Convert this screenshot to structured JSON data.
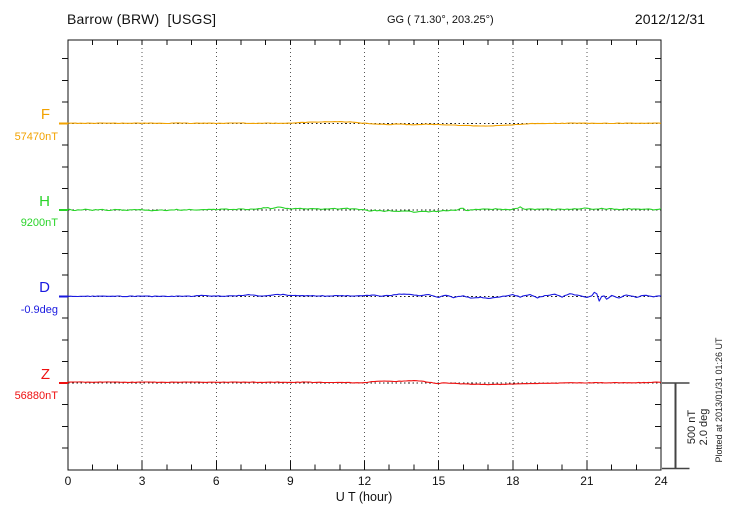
{
  "header": {
    "title": "Barrow (BRW)  [USGS]",
    "coords": "GG ( 71.30°, 203.25°)",
    "date": "2012/12/31"
  },
  "footer": {
    "plotted_at": "Plotted at 2013/01/31 01:26 UT"
  },
  "chart_data": {
    "type": "line",
    "title": "Barrow (BRW) [USGS] magnetogram 2012/12/31",
    "x": {
      "label": "U T (hour)",
      "min": 0,
      "max": 24,
      "major_tick_step": 3,
      "minor_tick_step": 1,
      "tick_labels": [
        "0",
        "3",
        "6",
        "9",
        "12",
        "15",
        "18",
        "21",
        "24"
      ],
      "gridlines": "dotted vertical every 3 hours"
    },
    "y": {
      "minor_tick_nT": 125,
      "minor_tick_deg": 0.5
    },
    "scale_bar": {
      "nT_label": "500 nT",
      "deg_label": "2.0 deg",
      "span_nT": 500,
      "span_deg": 2.0
    },
    "channels": [
      {
        "id": "F",
        "label": "F",
        "value_label": "57470nT",
        "base_value": 57470,
        "unit": "nT",
        "color": "#f2a200",
        "noise": 2.5,
        "points": [
          [
            0,
            1
          ],
          [
            0.5,
            2
          ],
          [
            1,
            1
          ],
          [
            1.5,
            3
          ],
          [
            2,
            1
          ],
          [
            2.5,
            2
          ],
          [
            3,
            1
          ],
          [
            3.5,
            2
          ],
          [
            4,
            1
          ],
          [
            4.5,
            3
          ],
          [
            5,
            1
          ],
          [
            5.5,
            2
          ],
          [
            6,
            1
          ],
          [
            6.5,
            2
          ],
          [
            7,
            3
          ],
          [
            7.5,
            1
          ],
          [
            8,
            2
          ],
          [
            8.5,
            1
          ],
          [
            9,
            3
          ],
          [
            9.5,
            6
          ],
          [
            10,
            8
          ],
          [
            10.5,
            10
          ],
          [
            11,
            10
          ],
          [
            11.5,
            8
          ],
          [
            11.8,
            4
          ],
          [
            12,
            1
          ],
          [
            12.5,
            -4
          ],
          [
            13,
            -6
          ],
          [
            13.3,
            -3
          ],
          [
            13.7,
            -6
          ],
          [
            14,
            -7
          ],
          [
            14.5,
            -4
          ],
          [
            15,
            -6
          ],
          [
            15.5,
            -9
          ],
          [
            16,
            -12
          ],
          [
            16.5,
            -13
          ],
          [
            17,
            -14
          ],
          [
            17.5,
            -12
          ],
          [
            18,
            -8
          ],
          [
            18.3,
            -4
          ],
          [
            18.7,
            -1
          ],
          [
            19,
            0
          ],
          [
            19.5,
            1
          ],
          [
            20,
            1
          ],
          [
            20.5,
            2
          ],
          [
            21,
            1
          ],
          [
            21.5,
            2
          ],
          [
            22,
            1
          ],
          [
            22.5,
            2
          ],
          [
            23,
            1
          ],
          [
            23.5,
            2
          ],
          [
            24,
            2
          ]
        ]
      },
      {
        "id": "H",
        "label": "H",
        "value_label": "9200nT",
        "base_value": 9200,
        "unit": "nT",
        "color": "#2ad42a",
        "noise": 5,
        "points": [
          [
            0,
            3
          ],
          [
            0.3,
            -2
          ],
          [
            0.7,
            3
          ],
          [
            1,
            -2
          ],
          [
            1.3,
            3
          ],
          [
            1.7,
            -1
          ],
          [
            2,
            2
          ],
          [
            2.3,
            -2
          ],
          [
            2.7,
            1
          ],
          [
            3,
            3
          ],
          [
            3.3,
            -3
          ],
          [
            3.7,
            0
          ],
          [
            4,
            -2
          ],
          [
            4.3,
            2
          ],
          [
            4.7,
            0
          ],
          [
            5,
            3
          ],
          [
            5.3,
            0
          ],
          [
            5.7,
            4
          ],
          [
            6,
            2
          ],
          [
            6.3,
            5
          ],
          [
            6.7,
            3
          ],
          [
            7,
            6
          ],
          [
            7.3,
            4
          ],
          [
            7.7,
            7
          ],
          [
            8,
            14
          ],
          [
            8.2,
            9
          ],
          [
            8.5,
            17
          ],
          [
            8.8,
            10
          ],
          [
            9,
            8
          ],
          [
            9.3,
            11
          ],
          [
            9.7,
            7
          ],
          [
            10,
            9
          ],
          [
            10.3,
            6
          ],
          [
            10.7,
            8
          ],
          [
            11,
            6
          ],
          [
            11.3,
            8
          ],
          [
            11.7,
            4
          ],
          [
            12,
            3
          ],
          [
            12.2,
            -5
          ],
          [
            12.5,
            -3
          ],
          [
            12.8,
            -7
          ],
          [
            13,
            -5
          ],
          [
            13.3,
            -9
          ],
          [
            13.7,
            -7
          ],
          [
            14,
            -11
          ],
          [
            14.3,
            -8
          ],
          [
            14.7,
            -10
          ],
          [
            15,
            -6
          ],
          [
            15.3,
            -3
          ],
          [
            15.7,
            -1
          ],
          [
            16,
            12
          ],
          [
            16.1,
            -5
          ],
          [
            16.3,
            3
          ],
          [
            16.7,
            5
          ],
          [
            17,
            3
          ],
          [
            17.3,
            6
          ],
          [
            17.7,
            2
          ],
          [
            18,
            4
          ],
          [
            18.3,
            16
          ],
          [
            18.5,
            1
          ],
          [
            18.8,
            6
          ],
          [
            19,
            3
          ],
          [
            19.3,
            7
          ],
          [
            19.7,
            2
          ],
          [
            20,
            6
          ],
          [
            20.3,
            3
          ],
          [
            20.7,
            8
          ],
          [
            21,
            12
          ],
          [
            21.2,
            5
          ],
          [
            21.5,
            9
          ],
          [
            21.8,
            4
          ],
          [
            22,
            7
          ],
          [
            22.3,
            3
          ],
          [
            22.7,
            8
          ],
          [
            23,
            3
          ],
          [
            23.3,
            6
          ],
          [
            23.7,
            3
          ],
          [
            24,
            5
          ]
        ]
      },
      {
        "id": "D",
        "label": "D",
        "value_label": "-0.9deg",
        "base_value": -0.9,
        "unit": "deg",
        "color": "#1a1ae0",
        "noise": 0.015,
        "points": [
          [
            0,
            0.005
          ],
          [
            0.5,
            0.002
          ],
          [
            1,
            0.006
          ],
          [
            1.5,
            0.002
          ],
          [
            2,
            0.005
          ],
          [
            2.5,
            0.003
          ],
          [
            3,
            0.006
          ],
          [
            3.5,
            0.002
          ],
          [
            4,
            0.005
          ],
          [
            4.5,
            0.008
          ],
          [
            5,
            0.004
          ],
          [
            5.5,
            0.03
          ],
          [
            5.8,
            0.01
          ],
          [
            6,
            0.015
          ],
          [
            6.5,
            0.008
          ],
          [
            7,
            0.02
          ],
          [
            7.3,
            0.045
          ],
          [
            7.6,
            0.02
          ],
          [
            8,
            0.015
          ],
          [
            8.3,
            0.04
          ],
          [
            8.7,
            0.045
          ],
          [
            9,
            0.02
          ],
          [
            9.5,
            0.015
          ],
          [
            10,
            0.02
          ],
          [
            10.5,
            0.01
          ],
          [
            11,
            0.02
          ],
          [
            11.5,
            0.012
          ],
          [
            12,
            0.018
          ],
          [
            12.3,
            0.03
          ],
          [
            12.7,
            0.01
          ],
          [
            13,
            0.025
          ],
          [
            13.3,
            0.045
          ],
          [
            13.6,
            0.06
          ],
          [
            14,
            0.03
          ],
          [
            14.3,
            0.02
          ],
          [
            14.6,
            0.05
          ],
          [
            15,
            -0.02
          ],
          [
            15.3,
            0.03
          ],
          [
            15.6,
            -0.03
          ],
          [
            16,
            0.02
          ],
          [
            16.3,
            -0.04
          ],
          [
            16.7,
            -0.02
          ],
          [
            17,
            -0.05
          ],
          [
            17.3,
            -0.02
          ],
          [
            17.7,
            0.01
          ],
          [
            18,
            0.04
          ],
          [
            18.3,
            -0.01
          ],
          [
            18.7,
            0.05
          ],
          [
            19,
            -0.03
          ],
          [
            19.3,
            0.02
          ],
          [
            19.7,
            0.05
          ],
          [
            20,
            -0.01
          ],
          [
            20.3,
            0.06
          ],
          [
            20.7,
            0.02
          ],
          [
            21,
            -0.02
          ],
          [
            21.2,
            0.02
          ],
          [
            21.35,
            0.14
          ],
          [
            21.5,
            -0.1
          ],
          [
            21.65,
            0.05
          ],
          [
            21.8,
            -0.06
          ],
          [
            22,
            0.02
          ],
          [
            22.3,
            -0.04
          ],
          [
            22.6,
            0.04
          ],
          [
            23,
            -0.02
          ],
          [
            23.3,
            0.03
          ],
          [
            23.7,
            -0.01
          ],
          [
            24,
            0.02
          ]
        ]
      },
      {
        "id": "Z",
        "label": "Z",
        "value_label": "56880nT",
        "base_value": 56880,
        "unit": "nT",
        "color": "#ee1111",
        "noise": 2.5,
        "points": [
          [
            0,
            5
          ],
          [
            0.5,
            5
          ],
          [
            1,
            4
          ],
          [
            1.5,
            6
          ],
          [
            2,
            5
          ],
          [
            2.5,
            4
          ],
          [
            3,
            5
          ],
          [
            3.5,
            5
          ],
          [
            4,
            4
          ],
          [
            4.5,
            5
          ],
          [
            5,
            5
          ],
          [
            5.5,
            4
          ],
          [
            6,
            5
          ],
          [
            6.5,
            5
          ],
          [
            7,
            4
          ],
          [
            7.5,
            5
          ],
          [
            8,
            4
          ],
          [
            8.5,
            5
          ],
          [
            9,
            4
          ],
          [
            9.5,
            5
          ],
          [
            10,
            4
          ],
          [
            10.5,
            4
          ],
          [
            11,
            3
          ],
          [
            11.5,
            2
          ],
          [
            12,
            2
          ],
          [
            12.3,
            7
          ],
          [
            12.7,
            11
          ],
          [
            13,
            11
          ],
          [
            13.3,
            9
          ],
          [
            13.7,
            12
          ],
          [
            14,
            13
          ],
          [
            14.3,
            11
          ],
          [
            14.6,
            4
          ],
          [
            15,
            -3
          ],
          [
            15.3,
            1
          ],
          [
            15.6,
            -2
          ],
          [
            16,
            -5
          ],
          [
            16.5,
            -7
          ],
          [
            17,
            -9
          ],
          [
            17.5,
            -8
          ],
          [
            18,
            -6
          ],
          [
            18.5,
            -4
          ],
          [
            19,
            -2
          ],
          [
            19.5,
            -1
          ],
          [
            20,
            0
          ],
          [
            20.5,
            1
          ],
          [
            21,
            1
          ],
          [
            21.5,
            2
          ],
          [
            22,
            1
          ],
          [
            22.5,
            2
          ],
          [
            23,
            2
          ],
          [
            23.5,
            3
          ],
          [
            24,
            5
          ]
        ]
      }
    ]
  }
}
